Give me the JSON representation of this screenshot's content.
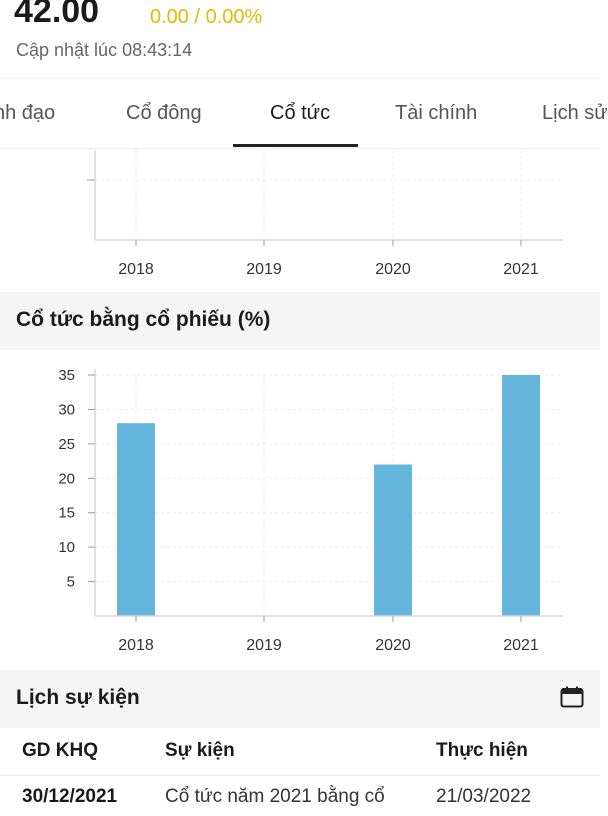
{
  "header": {
    "price": "42.00",
    "change": "0.00 / 0.00%",
    "updated": "Cập nhật lúc 08:43:14",
    "change_color": "#e6b800"
  },
  "tabs": [
    {
      "label": "nh đạo"
    },
    {
      "label": "Cổ đông"
    },
    {
      "label": "Cổ tức",
      "active": true
    },
    {
      "label": "Tài chính"
    },
    {
      "label": "Lịch sử"
    }
  ],
  "top_chart": {
    "categories": [
      "2018",
      "2019",
      "2020",
      "2021"
    ]
  },
  "stock_dividend": {
    "title": "Cổ tức bằng cổ phiếu (%)"
  },
  "chart_data": [
    {
      "type": "bar",
      "title": "",
      "categories": [
        "2018",
        "2019",
        "2020",
        "2021"
      ],
      "values": [
        null,
        null,
        null,
        null
      ],
      "xlabel": "",
      "ylabel": "",
      "grid": true
    },
    {
      "type": "bar",
      "title": "Cổ tức bằng cổ phiếu (%)",
      "categories": [
        "2018",
        "2019",
        "2020",
        "2021"
      ],
      "values": [
        28,
        0,
        22,
        35
      ],
      "yticks": [
        5,
        10,
        15,
        20,
        25,
        30,
        35
      ],
      "ylim": [
        0,
        35
      ],
      "xlabel": "",
      "ylabel": "",
      "grid": true,
      "bar_color": "#65b5dc"
    }
  ],
  "events": {
    "title": "Lịch sự kiện",
    "calendar_icon": "calendar-icon",
    "columns": [
      "GD KHQ",
      "Sự kiện",
      "Thực hiện"
    ],
    "rows": [
      {
        "date": "30/12/2021",
        "event": "Cổ tức năm 2021 bằng cổ",
        "execution": "21/03/2022"
      }
    ]
  }
}
